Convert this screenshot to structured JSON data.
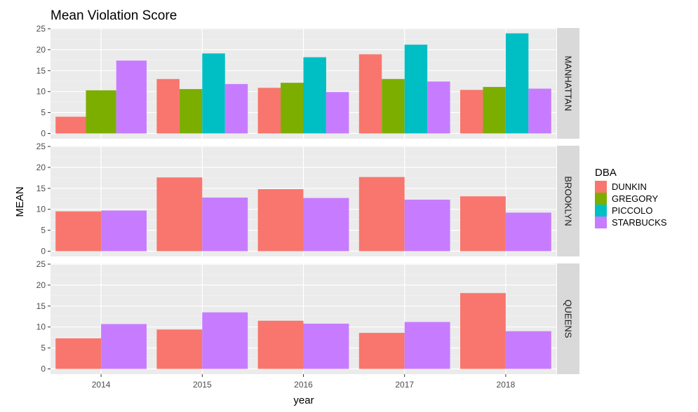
{
  "chart_data": {
    "type": "bar",
    "title": "Mean Violation Score",
    "xlabel": "year",
    "ylabel": "MEAN",
    "ylim": [
      0,
      25
    ],
    "yticks": [
      0,
      5,
      10,
      15,
      20,
      25
    ],
    "categories": [
      "2014",
      "2015",
      "2016",
      "2017",
      "2018"
    ],
    "legend_title": "DBA",
    "legend_position": "right",
    "grid": true,
    "series": [
      {
        "name": "DUNKIN",
        "color": "#F8766D"
      },
      {
        "name": "GREGORY",
        "color": "#7CAE00"
      },
      {
        "name": "PICCOLO",
        "color": "#00BFC4"
      },
      {
        "name": "STARBUCKS",
        "color": "#C77CFF"
      }
    ],
    "facets": [
      {
        "label": "MANHATTAN",
        "values": {
          "2014": {
            "DUNKIN": 4.0,
            "GREGORY": 10.3,
            "STARBUCKS": 17.4
          },
          "2015": {
            "DUNKIN": 13.0,
            "GREGORY": 10.6,
            "PICCOLO": 19.1,
            "STARBUCKS": 11.8
          },
          "2016": {
            "DUNKIN": 10.9,
            "GREGORY": 12.1,
            "PICCOLO": 18.2,
            "STARBUCKS": 9.9
          },
          "2017": {
            "DUNKIN": 18.9,
            "GREGORY": 13.0,
            "PICCOLO": 21.2,
            "STARBUCKS": 12.4
          },
          "2018": {
            "DUNKIN": 10.4,
            "GREGORY": 11.1,
            "PICCOLO": 23.9,
            "STARBUCKS": 10.7
          }
        }
      },
      {
        "label": "BROOKLYN",
        "values": {
          "2014": {
            "DUNKIN": 9.5,
            "STARBUCKS": 9.7
          },
          "2015": {
            "DUNKIN": 17.6,
            "STARBUCKS": 12.8
          },
          "2016": {
            "DUNKIN": 14.8,
            "STARBUCKS": 12.7
          },
          "2017": {
            "DUNKIN": 17.7,
            "STARBUCKS": 12.3
          },
          "2018": {
            "DUNKIN": 13.1,
            "STARBUCKS": 9.2
          }
        }
      },
      {
        "label": "QUEENS",
        "values": {
          "2014": {
            "DUNKIN": 7.3,
            "STARBUCKS": 10.7
          },
          "2015": {
            "DUNKIN": 9.4,
            "STARBUCKS": 13.5
          },
          "2016": {
            "DUNKIN": 11.5,
            "STARBUCKS": 10.8
          },
          "2017": {
            "DUNKIN": 8.6,
            "STARBUCKS": 11.2
          },
          "2018": {
            "DUNKIN": 18.1,
            "STARBUCKS": 9.0
          }
        }
      }
    ]
  }
}
